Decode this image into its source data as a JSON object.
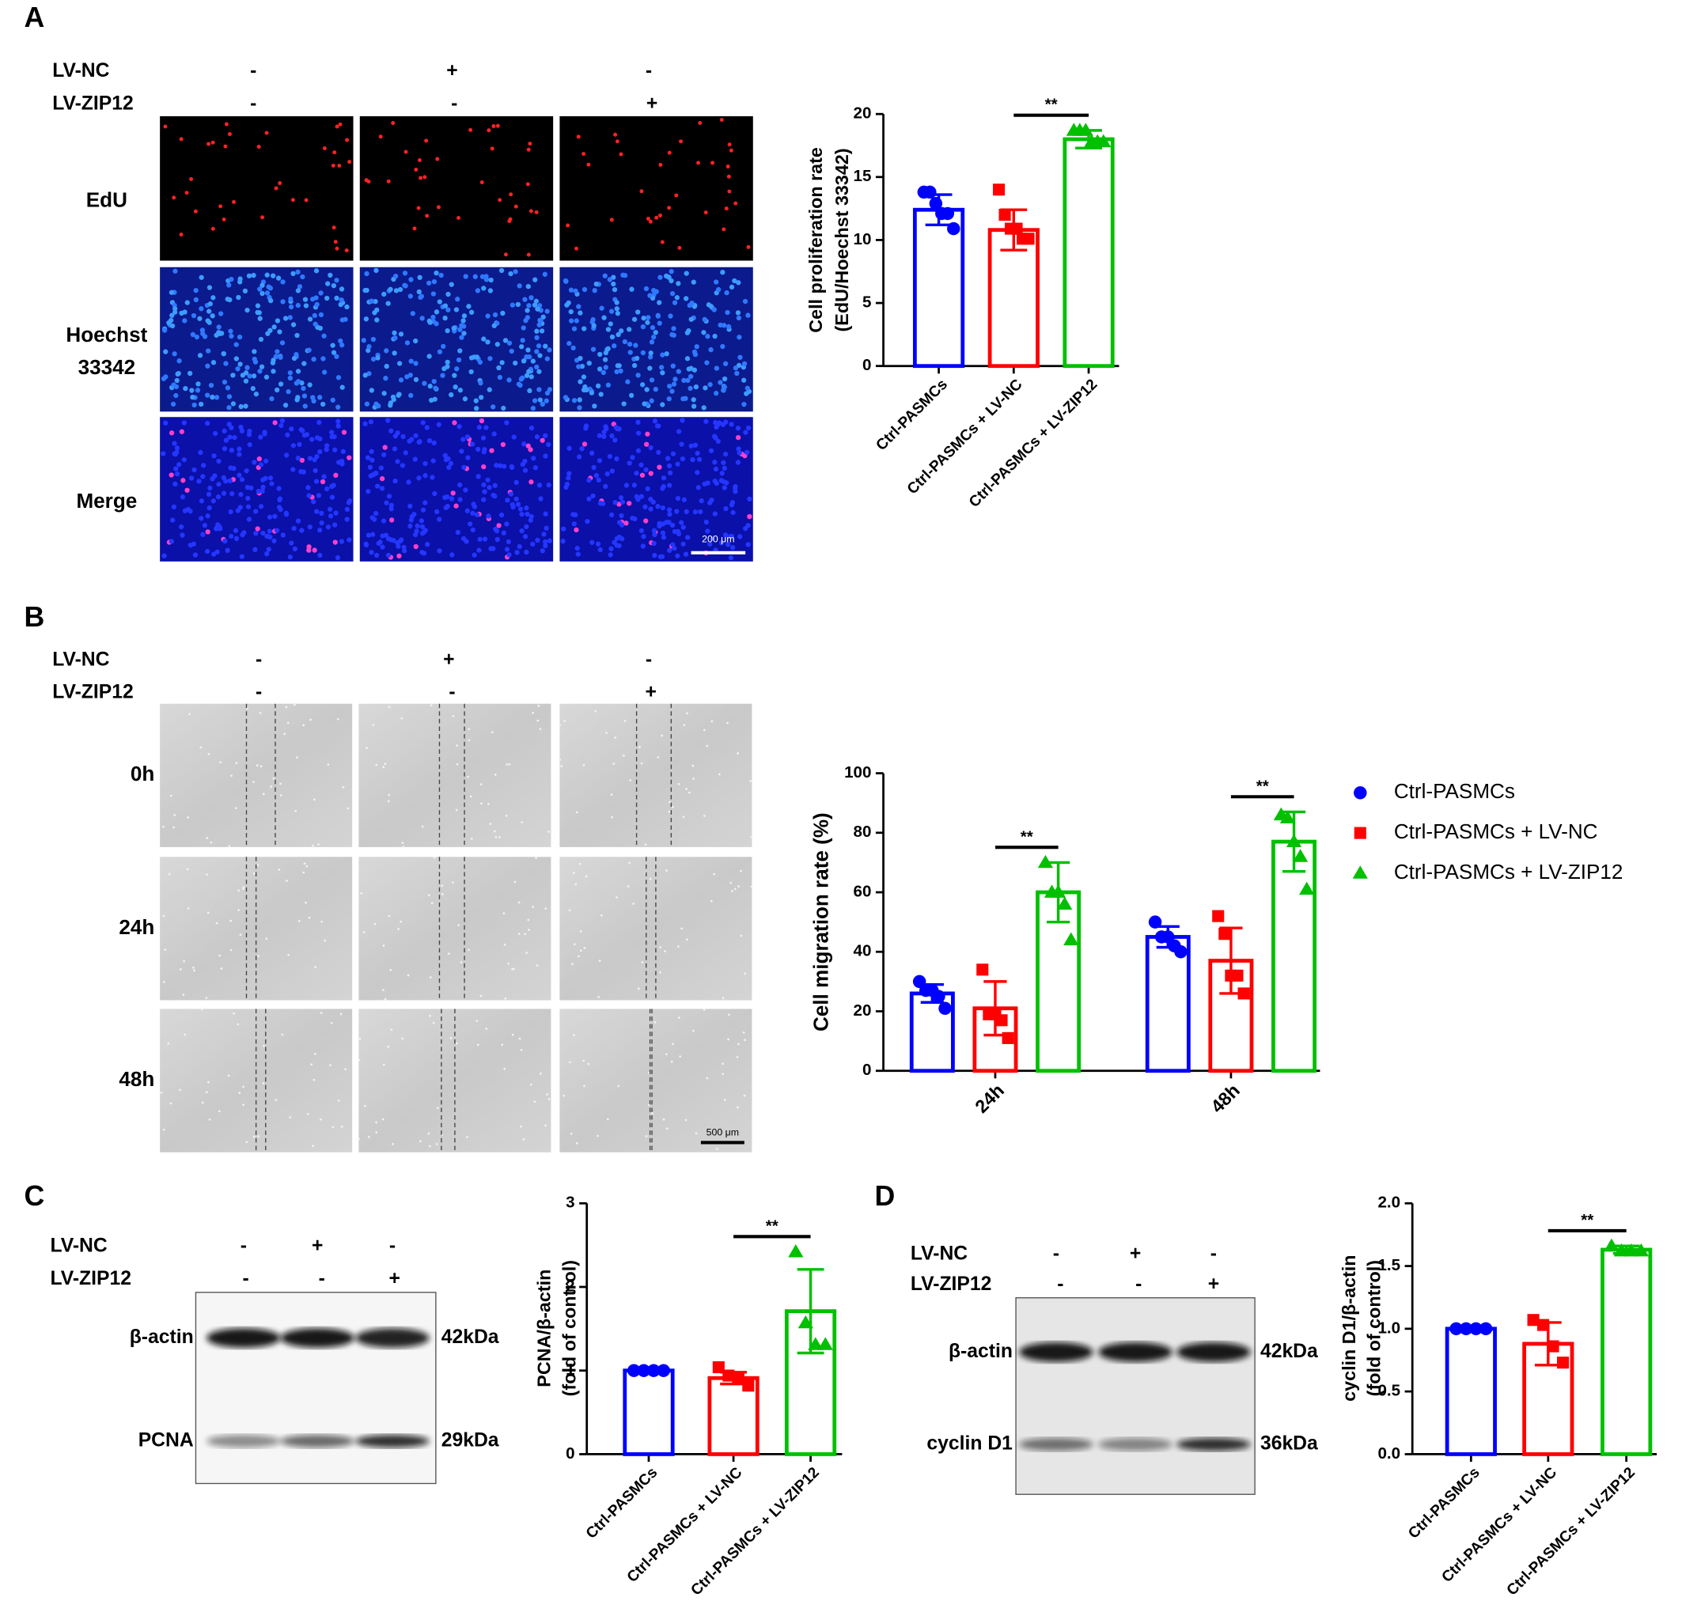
{
  "panel_labels": [
    "A",
    "B",
    "C",
    "D"
  ],
  "panel_a": {
    "rows": [
      {
        "label": "LV-NC",
        "signs": [
          "-",
          "+",
          "-"
        ]
      },
      {
        "label": "LV-ZIP12",
        "signs": [
          "-",
          "-",
          "+"
        ]
      }
    ],
    "stains": [
      "EdU",
      "Hoechst 33342",
      "Merge"
    ],
    "scale_bar": "200 μm"
  },
  "panel_b": {
    "rows": [
      {
        "label": "LV-NC",
        "signs": [
          "-",
          "+",
          "-"
        ]
      },
      {
        "label": "LV-ZIP12",
        "signs": [
          "-",
          "-",
          "+"
        ]
      }
    ],
    "times": [
      "0h",
      "24h",
      "48h"
    ],
    "scale_bar": "500 μm"
  },
  "panel_c": {
    "rows": [
      {
        "label": "LV-NC",
        "signs": [
          "-",
          "+",
          "-"
        ]
      },
      {
        "label": "LV-ZIP12",
        "signs": [
          "-",
          "-",
          "+"
        ]
      }
    ],
    "bands": [
      {
        "name": "β-actin",
        "size": "42kDa"
      },
      {
        "name": "PCNA",
        "size": "29kDa"
      }
    ]
  },
  "panel_d": {
    "rows": [
      {
        "label": "LV-NC",
        "signs": [
          "-",
          "+",
          "-"
        ]
      },
      {
        "label": "LV-ZIP12",
        "signs": [
          "-",
          "-",
          "+"
        ]
      }
    ],
    "bands": [
      {
        "name": "β-actin",
        "size": "42kDa"
      },
      {
        "name": "cyclin D1",
        "size": "36kDa"
      }
    ]
  },
  "chart_data": [
    {
      "type": "bar",
      "y_label": [
        "Cell proliferation rate",
        "(EdU/Hoechst 33342)"
      ],
      "ylim": [
        0,
        20
      ],
      "yticks": [
        0,
        5,
        10,
        15,
        20
      ],
      "categories": [
        "Ctrl-PASMCs",
        "Ctrl-PASMCs + LV-NC",
        "Ctrl-PASMCs + LV-ZIP12"
      ],
      "colors": [
        "#0000ff",
        "#ff0000",
        "#00c000"
      ],
      "markers": [
        "circle",
        "square",
        "triangle"
      ],
      "values": [
        12.4,
        10.8,
        18.0
      ],
      "errors": [
        1.2,
        1.6,
        0.7
      ],
      "points": [
        [
          13.8,
          13.8,
          12.9,
          12.1,
          12.1,
          10.9
        ],
        [
          14.0,
          12.0,
          10.9,
          10.9,
          10.1,
          10.1
        ],
        [
          18.7,
          18.7,
          18.7,
          17.8,
          17.8,
          17.8
        ]
      ],
      "annotations": [
        {
          "label": "**",
          "between": [
            1,
            2
          ]
        }
      ]
    },
    {
      "type": "grouped_bar",
      "y_label": "Cell migration rate (%)",
      "ylim": [
        0,
        100
      ],
      "yticks": [
        0,
        20,
        40,
        60,
        80,
        100
      ],
      "categories": [
        "24h",
        "48h"
      ],
      "legend": "right",
      "series": [
        {
          "name": "Ctrl-PASMCs",
          "color": "#0000ff",
          "marker": "circle",
          "values": [
            26,
            45
          ],
          "errors": [
            3,
            3.5
          ],
          "points": [
            [
              30,
              27,
              27,
              25,
              21
            ],
            [
              50,
              45,
              45,
              42,
              40
            ]
          ]
        },
        {
          "name": "Ctrl-PASMCs + LV-NC",
          "color": "#ff0000",
          "marker": "square",
          "values": [
            21,
            37
          ],
          "errors": [
            9,
            11
          ],
          "points": [
            [
              34,
              19,
              19,
              17,
              11
            ],
            [
              52,
              46,
              32,
              32,
              26
            ]
          ]
        },
        {
          "name": "Ctrl-PASMCs + LV-ZIP12",
          "color": "#00c000",
          "marker": "triangle",
          "values": [
            60,
            77
          ],
          "errors": [
            10,
            10
          ],
          "points": [
            [
              70,
              60,
              60,
              56,
              44
            ],
            [
              86,
              85,
              77,
              72,
              61
            ]
          ]
        }
      ],
      "annotations": [
        {
          "label": "**",
          "category": 0,
          "between": [
            1,
            2
          ]
        },
        {
          "label": "**",
          "category": 1,
          "between": [
            1,
            2
          ]
        }
      ]
    },
    {
      "type": "bar",
      "y_label": [
        "PCNA/β-actin",
        "(fold of control)"
      ],
      "ylim": [
        0,
        3
      ],
      "yticks": [
        0,
        1,
        2,
        3
      ],
      "categories": [
        "Ctrl-PASMCs",
        "Ctrl-PASMCs + LV-NC",
        "Ctrl-PASMCs + LV-ZIP12"
      ],
      "colors": [
        "#0000ff",
        "#ff0000",
        "#00c000"
      ],
      "markers": [
        "circle",
        "square",
        "triangle"
      ],
      "values": [
        1.0,
        0.91,
        1.71
      ],
      "errors": [
        0,
        0.07,
        0.5
      ],
      "points": [
        [
          1,
          1,
          1,
          1
        ],
        [
          1.04,
          0.94,
          0.9,
          0.82
        ],
        [
          2.42,
          1.57,
          1.31,
          1.31
        ]
      ],
      "annotations": [
        {
          "label": "**",
          "between": [
            1,
            2
          ]
        }
      ]
    },
    {
      "type": "bar",
      "y_label": [
        "cyclin D1/β-actin",
        "(fold of control)"
      ],
      "ylim": [
        0,
        2
      ],
      "yticks": [
        {
          "value": 0,
          "label": "0.0"
        },
        0.5,
        {
          "value": 1,
          "label": "1.0"
        },
        1.5,
        {
          "value": 2,
          "label": "2.0"
        }
      ],
      "categories": [
        "Ctrl-PASMCs",
        "Ctrl-PASMCs + LV-NC",
        "Ctrl-PASMCs + LV-ZIP12"
      ],
      "colors": [
        "#0000ff",
        "#ff0000",
        "#00c000"
      ],
      "markers": [
        "circle",
        "square",
        "triangle"
      ],
      "values": [
        1.0,
        0.88,
        1.63
      ],
      "errors": [
        0,
        0.17,
        0.03
      ],
      "points": [
        [
          1,
          1,
          1,
          1
        ],
        [
          1.07,
          1.03,
          0.86,
          0.73
        ],
        [
          1.66,
          1.62,
          1.62,
          1.62
        ]
      ],
      "annotations": [
        {
          "label": "**",
          "between": [
            1,
            2
          ]
        }
      ]
    }
  ]
}
